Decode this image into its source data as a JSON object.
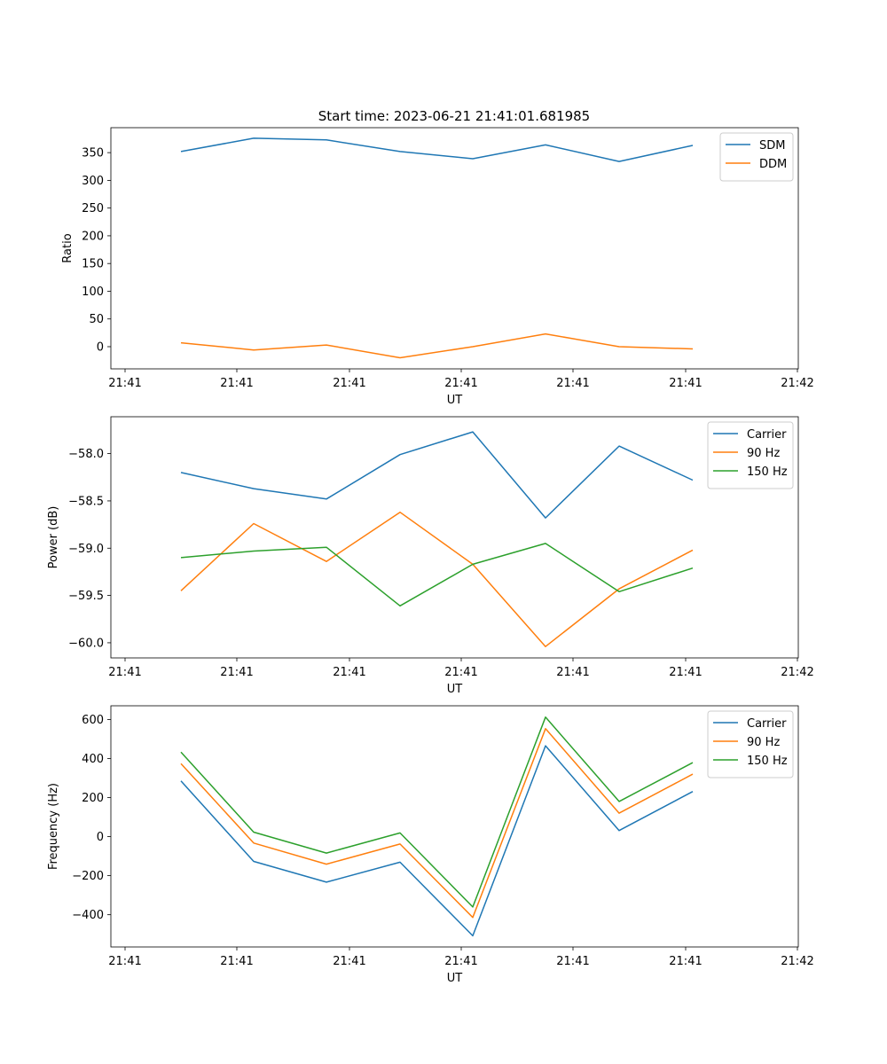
{
  "figure": {
    "title": "Start time: 2023-06-21 21:41:01.681985"
  },
  "chart_data": [
    {
      "type": "line",
      "xlabel": "UT",
      "ylabel": "Ratio",
      "x_tick_labels": [
        "21:41",
        "21:41",
        "21:41",
        "21:41",
        "21:41",
        "21:41",
        "21:42"
      ],
      "y_ticks": [
        0,
        50,
        100,
        150,
        200,
        250,
        300,
        350
      ],
      "ylim": [
        -40,
        395
      ],
      "grid": false,
      "legend_position": "upper right",
      "series": [
        {
          "name": "SDM",
          "color": "#1f77b4",
          "values": [
            352,
            376,
            373,
            352,
            339,
            364,
            334,
            363
          ]
        },
        {
          "name": "DDM",
          "color": "#ff7f0e",
          "values": [
            7,
            -6,
            3,
            -20,
            0,
            23,
            0,
            -4
          ]
        }
      ]
    },
    {
      "type": "line",
      "xlabel": "UT",
      "ylabel": "Power (dB)",
      "x_tick_labels": [
        "21:41",
        "21:41",
        "21:41",
        "21:41",
        "21:41",
        "21:41",
        "21:42"
      ],
      "y_ticks": [
        -60.0,
        -59.5,
        -59.0,
        -58.5,
        -58.0
      ],
      "y_tick_labels": [
        "−60.0",
        "−59.5",
        "−59.0",
        "−58.5",
        "−58.0"
      ],
      "ylim": [
        -60.16,
        -57.61
      ],
      "grid": false,
      "legend_position": "upper right",
      "series": [
        {
          "name": "Carrier",
          "color": "#1f77b4",
          "values": [
            -58.2,
            -58.37,
            -58.48,
            -58.01,
            -57.77,
            -58.68,
            -57.92,
            -58.28
          ]
        },
        {
          "name": "90 Hz",
          "color": "#ff7f0e",
          "values": [
            -59.45,
            -58.74,
            -59.14,
            -58.62,
            -59.17,
            -60.04,
            -59.43,
            -59.02
          ]
        },
        {
          "name": "150 Hz",
          "color": "#2ca02c",
          "values": [
            -59.1,
            -59.03,
            -58.99,
            -59.61,
            -59.17,
            -58.95,
            -59.46,
            -59.21
          ]
        }
      ]
    },
    {
      "type": "line",
      "xlabel": "UT",
      "ylabel": "Frequency (Hz)",
      "x_tick_labels": [
        "21:41",
        "21:41",
        "21:41",
        "21:41",
        "21:41",
        "21:41",
        "21:42"
      ],
      "y_ticks": [
        -400,
        -200,
        0,
        200,
        400,
        600
      ],
      "y_tick_labels": [
        "−400",
        "−200",
        "0",
        "200",
        "400",
        "600"
      ],
      "ylim": [
        -565,
        670
      ],
      "grid": false,
      "legend_position": "upper right",
      "series": [
        {
          "name": "Carrier",
          "color": "#1f77b4",
          "values": [
            285,
            -127,
            -233,
            -131,
            -508,
            465,
            31,
            231
          ]
        },
        {
          "name": "90 Hz",
          "color": "#ff7f0e",
          "values": [
            374,
            -33,
            -141,
            -38,
            -414,
            553,
            120,
            320
          ]
        },
        {
          "name": "150 Hz",
          "color": "#2ca02c",
          "values": [
            433,
            23,
            -84,
            19,
            -360,
            612,
            180,
            379
          ]
        }
      ]
    }
  ]
}
